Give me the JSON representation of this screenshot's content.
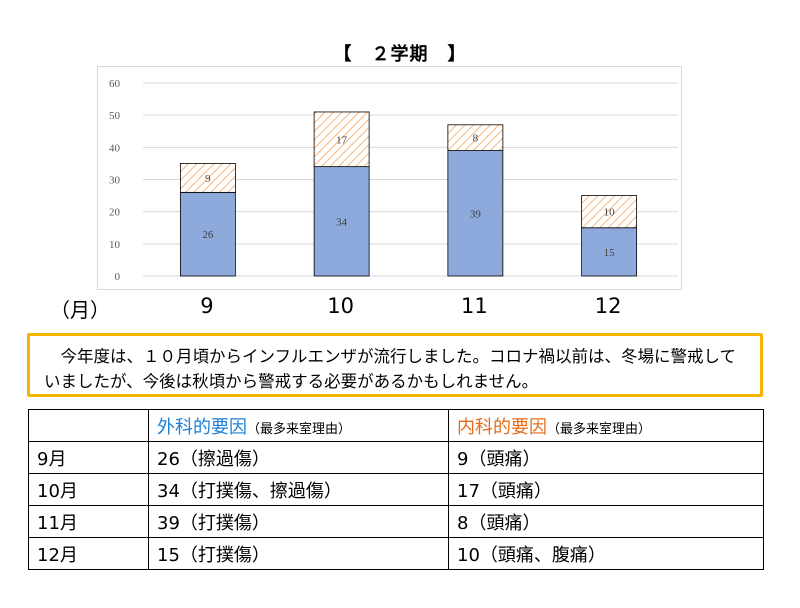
{
  "chart_title": "【　２学期　】",
  "x_unit_label": "（月）",
  "colors": {
    "surgical": "#8ea9db",
    "internal_hatch": "#f4a460",
    "note_border": "#f5b400",
    "surgical_header": "#1f7fd6",
    "internal_header": "#e36c1b"
  },
  "chart_data": {
    "type": "bar",
    "stacked": true,
    "title": "【　２学期　】",
    "xlabel": "（月）",
    "ylabel": "",
    "categories": [
      "9",
      "10",
      "11",
      "12"
    ],
    "series": [
      {
        "values": [
          26,
          34,
          39,
          15
        ]
      },
      {
        "values": [
          9,
          17,
          8,
          10
        ]
      }
    ],
    "ylim": [
      0,
      60
    ],
    "yticks": [
      "0",
      "10",
      "20",
      "30",
      "40",
      "50",
      "60"
    ],
    "grid": true,
    "legend": "none"
  },
  "note_text": "今年度は、１０月頃からインフルエンザが流行しました。コロナ禍以前は、冬場に警戒していましたが、今後は秋頃から警戒する必要があるかもしれません。",
  "table": {
    "header": {
      "surgical_title": "外科的要因",
      "surgical_sub": "（最多来室理由）",
      "internal_title": "内科的要因",
      "internal_sub": "（最多来室理由）"
    },
    "rows": [
      {
        "month": "9月",
        "surgical": "26（擦過傷）",
        "internal": "9（頭痛）"
      },
      {
        "month": "10月",
        "surgical": "34（打撲傷、擦過傷）",
        "internal": "17（頭痛）"
      },
      {
        "month": "11月",
        "surgical": "39（打撲傷）",
        "internal": "8（頭痛）"
      },
      {
        "month": "12月",
        "surgical": "15（打撲傷）",
        "internal": "10（頭痛、腹痛）"
      }
    ]
  }
}
